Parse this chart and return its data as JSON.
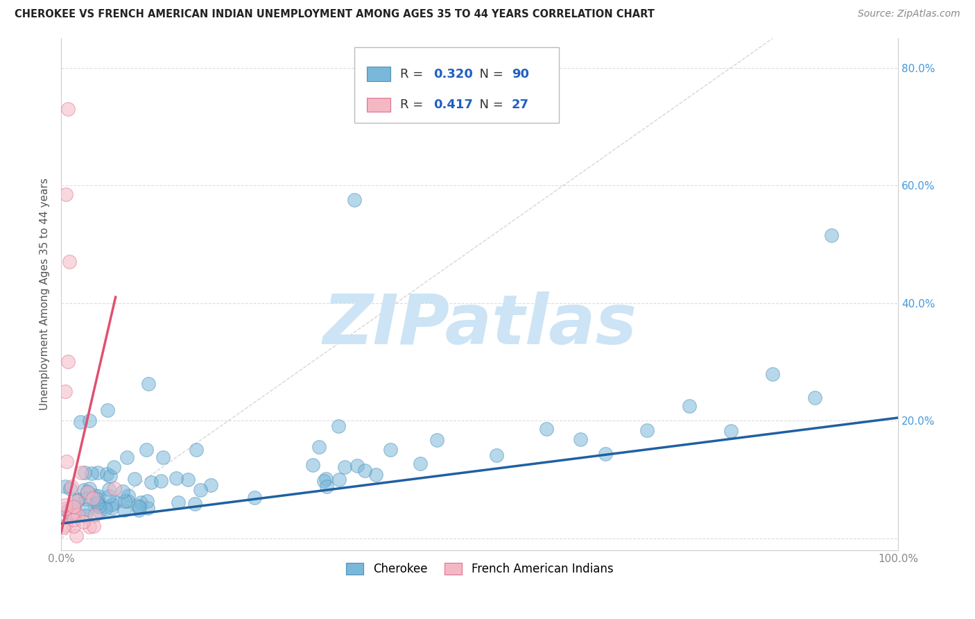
{
  "title": "CHEROKEE VS FRENCH AMERICAN INDIAN UNEMPLOYMENT AMONG AGES 35 TO 44 YEARS CORRELATION CHART",
  "source": "Source: ZipAtlas.com",
  "ylabel": "Unemployment Among Ages 35 to 44 years",
  "xlim": [
    0,
    1.0
  ],
  "ylim": [
    -0.02,
    0.85
  ],
  "xticks": [
    0.0,
    0.2,
    0.4,
    0.6,
    0.8,
    1.0
  ],
  "xticklabels": [
    "0.0%",
    "",
    "",
    "",
    "",
    "100.0%"
  ],
  "yticks": [
    0.0,
    0.2,
    0.4,
    0.6,
    0.8
  ],
  "yticklabels_right": [
    "",
    "20.0%",
    "40.0%",
    "60.0%",
    "80.0%"
  ],
  "cherokee_color": "#7ab8d9",
  "cherokee_edge": "#5090b8",
  "french_color": "#f4b8c4",
  "french_edge": "#e07090",
  "cherokee_trend_color": "#2060a0",
  "french_trend_color": "#e05070",
  "diag_color": "#cccccc",
  "grid_color": "#dddddd",
  "watermark": "ZIPatlas",
  "watermark_color": "#cce4f5",
  "cherokee_R": 0.32,
  "cherokee_N": 90,
  "french_R": 0.417,
  "french_N": 27,
  "legend_blue_color": "#2060c0",
  "legend_text_color": "#333333",
  "right_axis_color": "#4499dd",
  "title_color": "#222222",
  "source_color": "#888888",
  "ylabel_color": "#555555"
}
